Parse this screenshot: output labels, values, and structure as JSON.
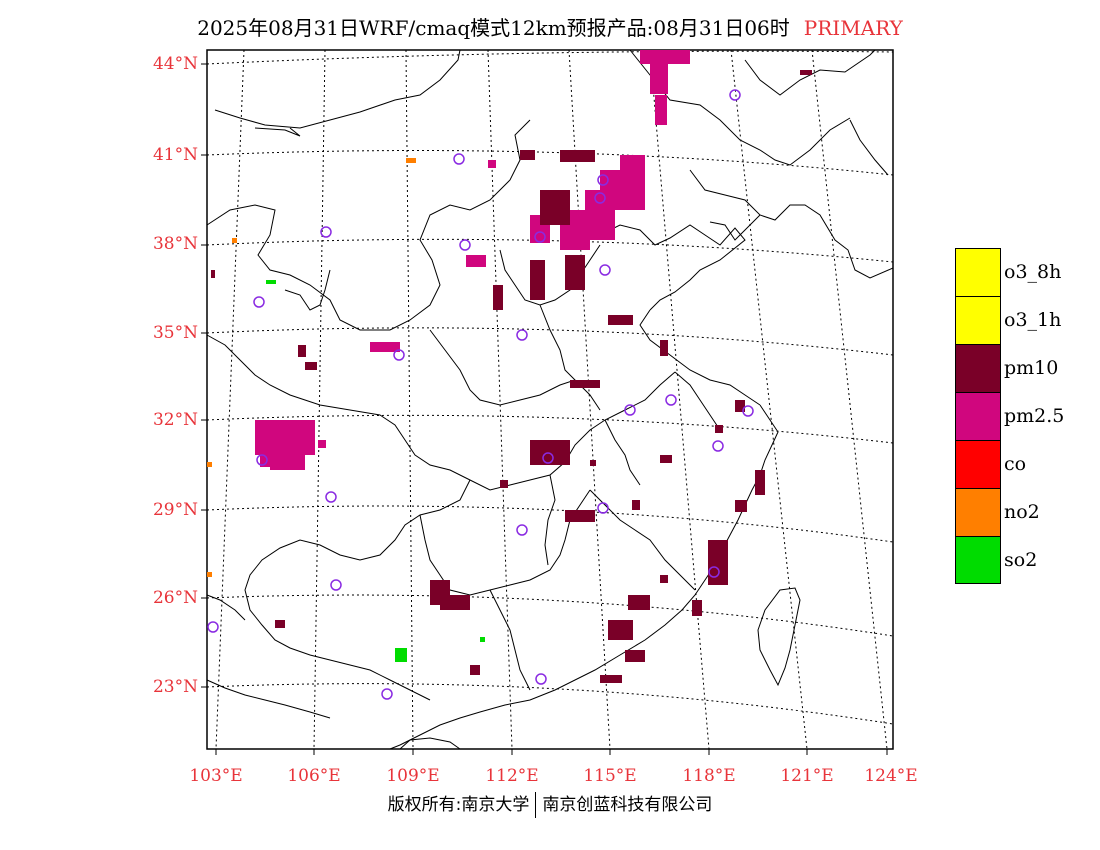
{
  "title": {
    "main": "2025年08月31日WRF/cmaq模式12km预报产品:08月31日06时",
    "tag": "PRIMARY"
  },
  "map": {
    "lat_labels": [
      "44°N",
      "41°N",
      "38°N",
      "35°N",
      "32°N",
      "29°N",
      "26°N",
      "23°N"
    ],
    "lon_labels": [
      "103°E",
      "106°E",
      "109°E",
      "112°E",
      "115°E",
      "118°E",
      "121°E",
      "124°E"
    ]
  },
  "legend": {
    "items": [
      {
        "label": "o3_8h",
        "color": "#ffff00"
      },
      {
        "label": "o3_1h",
        "color": "#ffff00"
      },
      {
        "label": "pm10",
        "color": "#7a0028"
      },
      {
        "label": "pm2.5",
        "color": "#d0067e"
      },
      {
        "label": "co",
        "color": "#ff0000"
      },
      {
        "label": "no2",
        "color": "#ff7f00"
      },
      {
        "label": "so2",
        "color": "#00dc00"
      }
    ]
  },
  "footer": {
    "left": "版权所有:南京大学",
    "right": "南京创蓝科技有限公司"
  }
}
